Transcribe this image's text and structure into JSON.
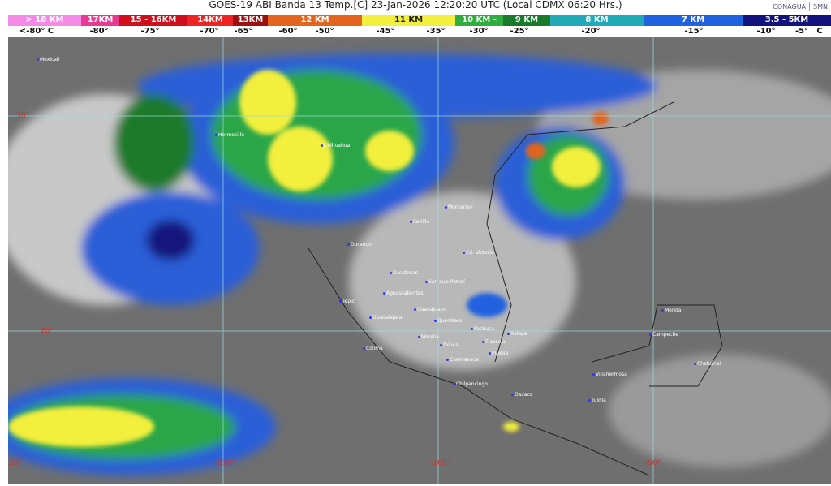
{
  "header": {
    "title": "GOES-19 ABI Banda 13 Temp.[C] 23-Jan-2026 12:20:20 UTC (Local CDMX  06:20 Hrs.)",
    "logo_left": "CONAGUA",
    "logo_right": "SMN"
  },
  "legend": [
    {
      "label": "> 18 KM",
      "color": "#f38ae6"
    },
    {
      "label": "17KM",
      "color": "#e83a92"
    },
    {
      "label": "15 - 16KM",
      "color": "#d10f1c"
    },
    {
      "label": "14KM",
      "color": "#ec2424"
    },
    {
      "label": "13KM",
      "color": "#9c1010"
    },
    {
      "label": "12 KM",
      "color": "#e2641f"
    },
    {
      "label": "11 KM",
      "color": "#f2ef3e"
    },
    {
      "label": "10 KM -",
      "color": "#2fae3f"
    },
    {
      "label": "9 KM",
      "color": "#1a7a2b"
    },
    {
      "label": "8 KM",
      "color": "#22a9b8"
    },
    {
      "label": "7 KM",
      "color": "#2162e0"
    },
    {
      "label": "3.5 - 5KM",
      "color": "#12127e"
    }
  ],
  "temps": [
    "<-80° C",
    "-80°",
    "-75°",
    "-70°",
    "-65°",
    "-60°",
    "-50°",
    "-45°",
    "-35°",
    "-30°",
    "-25°",
    "-20°",
    "-15°",
    "-10°",
    "-5°",
    "C"
  ],
  "grid_labels": [
    "30°",
    "20°",
    "-120°",
    "-110°",
    "-100°",
    "-90°"
  ],
  "cities": [
    "Mexicali",
    "Hermosillo",
    "Chihuahua",
    "Saltillo",
    "Monterrey",
    "Durango",
    "Cd. Victoria",
    "Zacatecas",
    "San Luis Potosí",
    "Aguascalientes",
    "Tepic",
    "Guanajuato",
    "Guadalajara",
    "Querétaro",
    "Pachuca",
    "Morelia",
    "Colima",
    "Toluca",
    "Tlaxcala",
    "Cuernavaca",
    "Puebla",
    "Xalapa",
    "Chilpancingo",
    "Oaxaca",
    "Villahermosa",
    "Tuxtla",
    "Mérida",
    "Campeche",
    "Chetumal"
  ]
}
